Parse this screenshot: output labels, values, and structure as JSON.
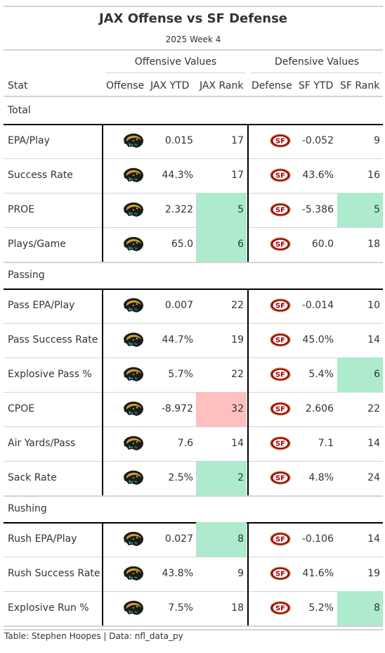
{
  "title": "JAX Offense vs SF Defense",
  "subtitle": "2025 Week 4",
  "spanners": {
    "offense": "Offensive Values",
    "defense": "Defensive Values"
  },
  "columns": {
    "stat": "Stat",
    "offense": "Offense",
    "jax_ytd": "JAX YTD",
    "jax_rank": "JAX Rank",
    "defense": "Defense",
    "sf_ytd": "SF YTD",
    "sf_rank": "SF Rank"
  },
  "icons": {
    "offense": "jaguar-logo-icon",
    "defense": "49ers-logo-icon"
  },
  "colors": {
    "good": "#aeeacd",
    "bad": "#ffbfbf"
  },
  "groups": [
    {
      "name": "Total",
      "rows": [
        {
          "stat": "EPA/Play",
          "jax_ytd": "0.015",
          "jax_rank": "17",
          "jax_hl": "",
          "sf_ytd": "-0.052",
          "sf_rank": "9",
          "sf_hl": ""
        },
        {
          "stat": "Success Rate",
          "jax_ytd": "44.3%",
          "jax_rank": "17",
          "jax_hl": "",
          "sf_ytd": "43.6%",
          "sf_rank": "16",
          "sf_hl": ""
        },
        {
          "stat": "PROE",
          "jax_ytd": "2.322",
          "jax_rank": "5",
          "jax_hl": "good",
          "sf_ytd": "-5.386",
          "sf_rank": "5",
          "sf_hl": "good"
        },
        {
          "stat": "Plays/Game",
          "jax_ytd": "65.0",
          "jax_rank": "6",
          "jax_hl": "good",
          "sf_ytd": "60.0",
          "sf_rank": "18",
          "sf_hl": ""
        }
      ]
    },
    {
      "name": "Passing",
      "rows": [
        {
          "stat": "Pass EPA/Play",
          "jax_ytd": "0.007",
          "jax_rank": "22",
          "jax_hl": "",
          "sf_ytd": "-0.014",
          "sf_rank": "10",
          "sf_hl": ""
        },
        {
          "stat": "Pass Success Rate",
          "jax_ytd": "44.7%",
          "jax_rank": "19",
          "jax_hl": "",
          "sf_ytd": "45.0%",
          "sf_rank": "14",
          "sf_hl": ""
        },
        {
          "stat": "Explosive Pass %",
          "jax_ytd": "5.7%",
          "jax_rank": "22",
          "jax_hl": "",
          "sf_ytd": "5.4%",
          "sf_rank": "6",
          "sf_hl": "good"
        },
        {
          "stat": "CPOE",
          "jax_ytd": "-8.972",
          "jax_rank": "32",
          "jax_hl": "bad",
          "sf_ytd": "2.606",
          "sf_rank": "22",
          "sf_hl": ""
        },
        {
          "stat": "Air Yards/Pass",
          "jax_ytd": "7.6",
          "jax_rank": "14",
          "jax_hl": "",
          "sf_ytd": "7.1",
          "sf_rank": "14",
          "sf_hl": ""
        },
        {
          "stat": "Sack Rate",
          "jax_ytd": "2.5%",
          "jax_rank": "2",
          "jax_hl": "good",
          "sf_ytd": "4.8%",
          "sf_rank": "24",
          "sf_hl": ""
        }
      ]
    },
    {
      "name": "Rushing",
      "rows": [
        {
          "stat": "Rush EPA/Play",
          "jax_ytd": "0.027",
          "jax_rank": "8",
          "jax_hl": "good",
          "sf_ytd": "-0.106",
          "sf_rank": "14",
          "sf_hl": ""
        },
        {
          "stat": "Rush Success Rate",
          "jax_ytd": "43.8%",
          "jax_rank": "9",
          "jax_hl": "",
          "sf_ytd": "41.6%",
          "sf_rank": "19",
          "sf_hl": ""
        },
        {
          "stat": "Explosive Run %",
          "jax_ytd": "7.5%",
          "jax_rank": "18",
          "jax_hl": "",
          "sf_ytd": "5.2%",
          "sf_rank": "8",
          "sf_hl": "good"
        }
      ]
    }
  ],
  "footer": "Table: Stephen Hoopes | Data: nfl_data_py"
}
